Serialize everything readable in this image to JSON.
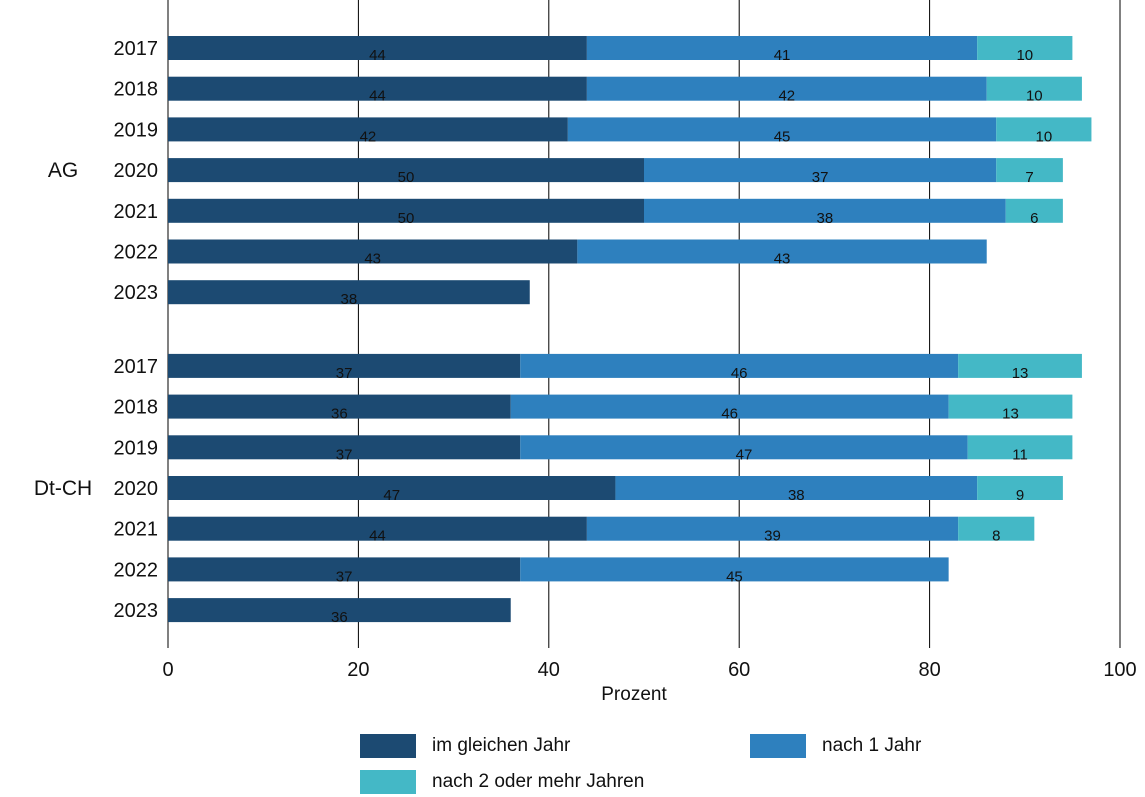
{
  "chart_data": {
    "type": "bar",
    "orientation": "horizontal",
    "stacked": true,
    "xlabel": "Prozent",
    "xlim": [
      0,
      100
    ],
    "xticks": [
      0,
      20,
      40,
      60,
      80,
      100
    ],
    "grid": "vertical",
    "legend_position": "bottom",
    "colors": {
      "im gleichen Jahr": "#1c4a72",
      "nach 1 Jahr": "#2e80be",
      "nach 2 oder mehr Jahren": "#44b8c6"
    },
    "groups": [
      {
        "name": "AG",
        "categories": [
          "2017",
          "2018",
          "2019",
          "2020",
          "2021",
          "2022",
          "2023"
        ],
        "series": [
          {
            "name": "im gleichen Jahr",
            "values": [
              44,
              44,
              42,
              50,
              50,
              43,
              38
            ]
          },
          {
            "name": "nach 1 Jahr",
            "values": [
              41,
              42,
              45,
              37,
              38,
              43,
              null
            ]
          },
          {
            "name": "nach 2 oder mehr Jahren",
            "values": [
              10,
              10,
              10,
              7,
              6,
              null,
              null
            ]
          }
        ]
      },
      {
        "name": "Dt-CH",
        "categories": [
          "2017",
          "2018",
          "2019",
          "2020",
          "2021",
          "2022",
          "2023"
        ],
        "series": [
          {
            "name": "im gleichen Jahr",
            "values": [
              37,
              36,
              37,
              47,
              44,
              37,
              36
            ]
          },
          {
            "name": "nach 1 Jahr",
            "values": [
              46,
              46,
              47,
              38,
              39,
              45,
              null
            ]
          },
          {
            "name": "nach 2 oder mehr Jahren",
            "values": [
              13,
              13,
              11,
              9,
              8,
              null,
              null
            ]
          }
        ]
      }
    ]
  }
}
